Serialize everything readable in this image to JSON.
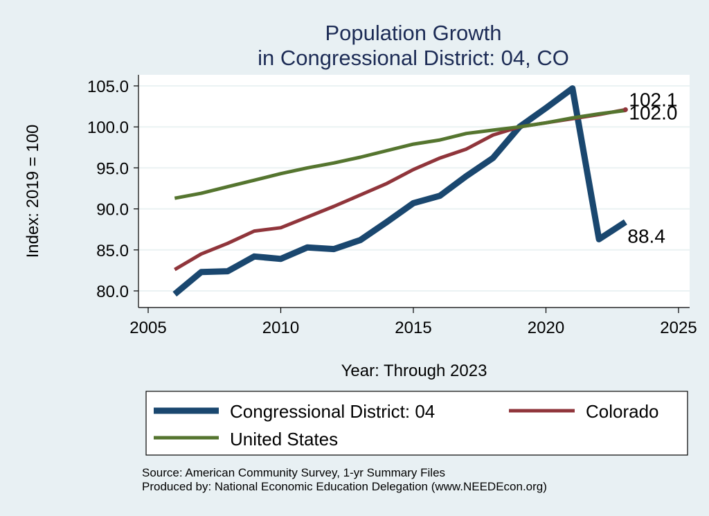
{
  "chart_data": {
    "type": "line",
    "title": [
      "Population Growth",
      "in Congressional District: 04, CO"
    ],
    "xlabel": "Year: Through 2023",
    "ylabel": "Index: 2019 = 100",
    "xlim": [
      2005,
      2025
    ],
    "ylim": [
      80,
      105
    ],
    "x_ticks": [
      2005,
      2010,
      2015,
      2020,
      2025
    ],
    "x_tick_labels": [
      "2005",
      "2010",
      "2015",
      "2020",
      "2025"
    ],
    "y_ticks": [
      80,
      85,
      90,
      95,
      100,
      105
    ],
    "y_tick_labels": [
      "80.0",
      "85.0",
      "90.0",
      "95.0",
      "100.0",
      "105.0"
    ],
    "grid": true,
    "legend_position": "bottom",
    "x": [
      2006,
      2007,
      2008,
      2009,
      2010,
      2011,
      2012,
      2013,
      2014,
      2015,
      2016,
      2017,
      2018,
      2019,
      2020,
      2021,
      2022,
      2023
    ],
    "series": [
      {
        "name": "Congressional District: 04",
        "color": "#1a476f",
        "values": [
          79.6,
          82.3,
          82.4,
          84.2,
          83.9,
          85.3,
          85.1,
          86.2,
          88.4,
          90.7,
          91.6,
          94.0,
          96.2,
          100.0,
          102.3,
          104.7,
          86.3,
          88.4
        ],
        "end_label": "88.4"
      },
      {
        "name": "Colorado",
        "color": "#90353b",
        "values": [
          82.6,
          84.5,
          85.8,
          87.3,
          87.7,
          89.0,
          90.3,
          91.7,
          93.1,
          94.8,
          96.2,
          97.3,
          99.0,
          100.0,
          100.5,
          101.0,
          101.5,
          102.1
        ],
        "end_label": "102.1"
      },
      {
        "name": "United States",
        "color": "#55752f",
        "values": [
          91.3,
          91.9,
          92.7,
          93.5,
          94.3,
          95.0,
          95.6,
          96.3,
          97.1,
          97.9,
          98.4,
          99.2,
          99.6,
          100.0,
          100.5,
          101.1,
          101.6,
          102.0
        ],
        "end_label": "102.0"
      }
    ],
    "notes": [
      "Source: American Community Survey, 1-yr Summary Files",
      "Produced by: National Economic Education Delegation (www.NEEDEcon.org)"
    ]
  }
}
